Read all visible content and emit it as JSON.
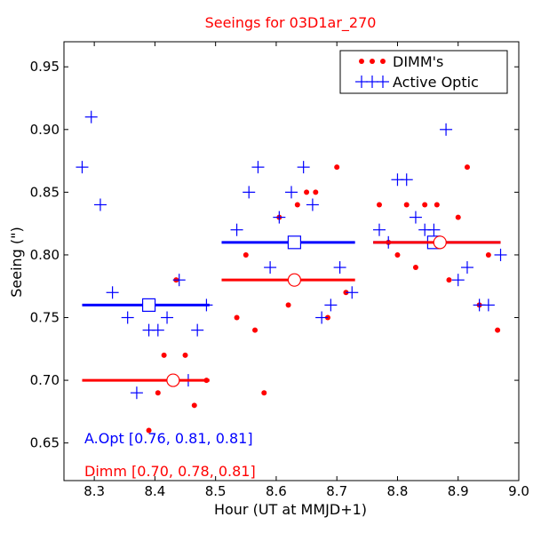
{
  "chart_data": {
    "type": "scatter",
    "title": "Seeings for 03D1ar_270",
    "xlabel": "Hour (UT at MMJD+1)",
    "ylabel": "Seeing (\")",
    "xlim": [
      8.25,
      9.0
    ],
    "ylim": [
      0.62,
      0.97
    ],
    "xticks": [
      8.3,
      8.4,
      8.5,
      8.6,
      8.7,
      8.8,
      8.9,
      9.0
    ],
    "xtick_labels": [
      "8.3",
      "8.4",
      "8.5",
      "8.6",
      "8.7",
      "8.8",
      "8.9",
      "9.0"
    ],
    "yticks": [
      0.65,
      0.7,
      0.75,
      0.8,
      0.85,
      0.9,
      0.95
    ],
    "ytick_labels": [
      "0.65",
      "0.70",
      "0.75",
      "0.80",
      "0.85",
      "0.90",
      "0.95"
    ],
    "legend": {
      "position": "top-right",
      "entries": [
        {
          "label": "DIMM's",
          "color": "#ff0000",
          "marker": "dot"
        },
        {
          "label": "Active Optic",
          "color": "#0000ff",
          "marker": "plus"
        }
      ]
    },
    "series": [
      {
        "name": "DIMM's",
        "color": "#ff0000",
        "marker": "dot",
        "points": [
          [
            8.39,
            0.66
          ],
          [
            8.405,
            0.69
          ],
          [
            8.415,
            0.72
          ],
          [
            8.435,
            0.78
          ],
          [
            8.45,
            0.72
          ],
          [
            8.465,
            0.68
          ],
          [
            8.485,
            0.7
          ],
          [
            8.535,
            0.75
          ],
          [
            8.55,
            0.8
          ],
          [
            8.565,
            0.74
          ],
          [
            8.58,
            0.69
          ],
          [
            8.605,
            0.83
          ],
          [
            8.62,
            0.76
          ],
          [
            8.635,
            0.84
          ],
          [
            8.65,
            0.85
          ],
          [
            8.665,
            0.85
          ],
          [
            8.685,
            0.75
          ],
          [
            8.7,
            0.87
          ],
          [
            8.715,
            0.77
          ],
          [
            8.77,
            0.84
          ],
          [
            8.785,
            0.81
          ],
          [
            8.8,
            0.8
          ],
          [
            8.815,
            0.84
          ],
          [
            8.83,
            0.79
          ],
          [
            8.845,
            0.84
          ],
          [
            8.865,
            0.84
          ],
          [
            8.885,
            0.78
          ],
          [
            8.9,
            0.83
          ],
          [
            8.915,
            0.87
          ],
          [
            8.935,
            0.76
          ],
          [
            8.95,
            0.8
          ],
          [
            8.965,
            0.74
          ]
        ]
      },
      {
        "name": "Active Optic",
        "color": "#0000ff",
        "marker": "plus",
        "points": [
          [
            8.28,
            0.87
          ],
          [
            8.295,
            0.91
          ],
          [
            8.31,
            0.84
          ],
          [
            8.33,
            0.77
          ],
          [
            8.355,
            0.75
          ],
          [
            8.37,
            0.69
          ],
          [
            8.39,
            0.74
          ],
          [
            8.405,
            0.74
          ],
          [
            8.42,
            0.75
          ],
          [
            8.44,
            0.78
          ],
          [
            8.455,
            0.7
          ],
          [
            8.47,
            0.74
          ],
          [
            8.485,
            0.76
          ],
          [
            8.535,
            0.82
          ],
          [
            8.555,
            0.85
          ],
          [
            8.57,
            0.87
          ],
          [
            8.59,
            0.79
          ],
          [
            8.605,
            0.83
          ],
          [
            8.625,
            0.85
          ],
          [
            8.645,
            0.87
          ],
          [
            8.66,
            0.84
          ],
          [
            8.675,
            0.75
          ],
          [
            8.69,
            0.76
          ],
          [
            8.705,
            0.79
          ],
          [
            8.725,
            0.77
          ],
          [
            8.77,
            0.82
          ],
          [
            8.785,
            0.81
          ],
          [
            8.8,
            0.86
          ],
          [
            8.815,
            0.86
          ],
          [
            8.83,
            0.83
          ],
          [
            8.845,
            0.82
          ],
          [
            8.86,
            0.82
          ],
          [
            8.88,
            0.9
          ],
          [
            8.9,
            0.78
          ],
          [
            8.915,
            0.79
          ],
          [
            8.935,
            0.76
          ],
          [
            8.95,
            0.76
          ],
          [
            8.97,
            0.8
          ]
        ]
      }
    ],
    "medians": [
      {
        "series": "Active Optic",
        "color": "#0000ff",
        "marker": "square",
        "x_start": 8.28,
        "x_end": 8.49,
        "x_center": 8.39,
        "y": 0.76
      },
      {
        "series": "Active Optic",
        "color": "#0000ff",
        "marker": "square",
        "x_start": 8.51,
        "x_end": 8.73,
        "x_center": 8.63,
        "y": 0.81
      },
      {
        "series": "Active Optic",
        "color": "#0000ff",
        "marker": "square",
        "x_start": 8.76,
        "x_end": 8.97,
        "x_center": 8.86,
        "y": 0.81
      },
      {
        "series": "DIMM's",
        "color": "#ff0000",
        "marker": "circle",
        "x_start": 8.28,
        "x_end": 8.49,
        "x_center": 8.43,
        "y": 0.7
      },
      {
        "series": "DIMM's",
        "color": "#ff0000",
        "marker": "circle",
        "x_start": 8.51,
        "x_end": 8.73,
        "x_center": 8.63,
        "y": 0.78
      },
      {
        "series": "DIMM's",
        "color": "#ff0000",
        "marker": "circle",
        "x_start": 8.76,
        "x_end": 8.97,
        "x_center": 8.87,
        "y": 0.81
      }
    ],
    "annotations": [
      {
        "text": "A.Opt [0.76, 0.81, 0.81]",
        "color": "#0000ff"
      },
      {
        "text": "Dimm [0.70, 0.78, 0.81]",
        "color": "#ff0000"
      }
    ]
  }
}
